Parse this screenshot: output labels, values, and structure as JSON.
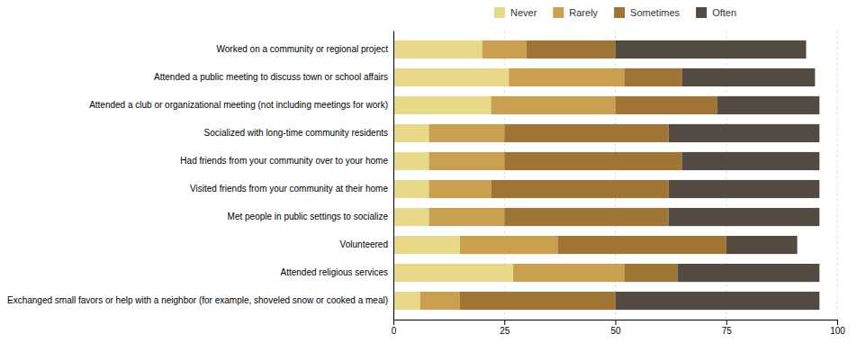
{
  "chart_data": {
    "type": "bar",
    "orientation": "horizontal",
    "stacked": true,
    "categories": [
      "Worked on a community or regional project",
      "Attended a public meeting to discuss town or school affairs",
      "Attended a club or organizational meeting (not including meetings for work)",
      "Socialized with long-time community residents",
      "Had friends from your community over to your home",
      "Visited friends from your community at their home",
      "Met people in public settings to socialize",
      "Volunteered",
      "Attended religious services",
      "Exchanged small favors or help with a neighbor (for example, shoveled snow or cooked a meal)"
    ],
    "series": [
      {
        "name": "Never",
        "color": "#e8d98a",
        "values": [
          20,
          26,
          22,
          8,
          8,
          8,
          8,
          15,
          27,
          6
        ]
      },
      {
        "name": "Rarely",
        "color": "#c9a050",
        "values": [
          10,
          26,
          28,
          17,
          17,
          14,
          17,
          22,
          25,
          9
        ]
      },
      {
        "name": "Sometimes",
        "color": "#9e7535",
        "values": [
          20,
          13,
          23,
          37,
          40,
          40,
          37,
          38,
          12,
          35
        ]
      },
      {
        "name": "Often",
        "color": "#534b42",
        "values": [
          43,
          30,
          23,
          34,
          31,
          34,
          34,
          16,
          32,
          46
        ]
      }
    ],
    "xlim": [
      0,
      100
    ],
    "xticks": [
      0,
      25,
      50,
      75,
      100
    ],
    "grid": true,
    "legend": "top"
  }
}
